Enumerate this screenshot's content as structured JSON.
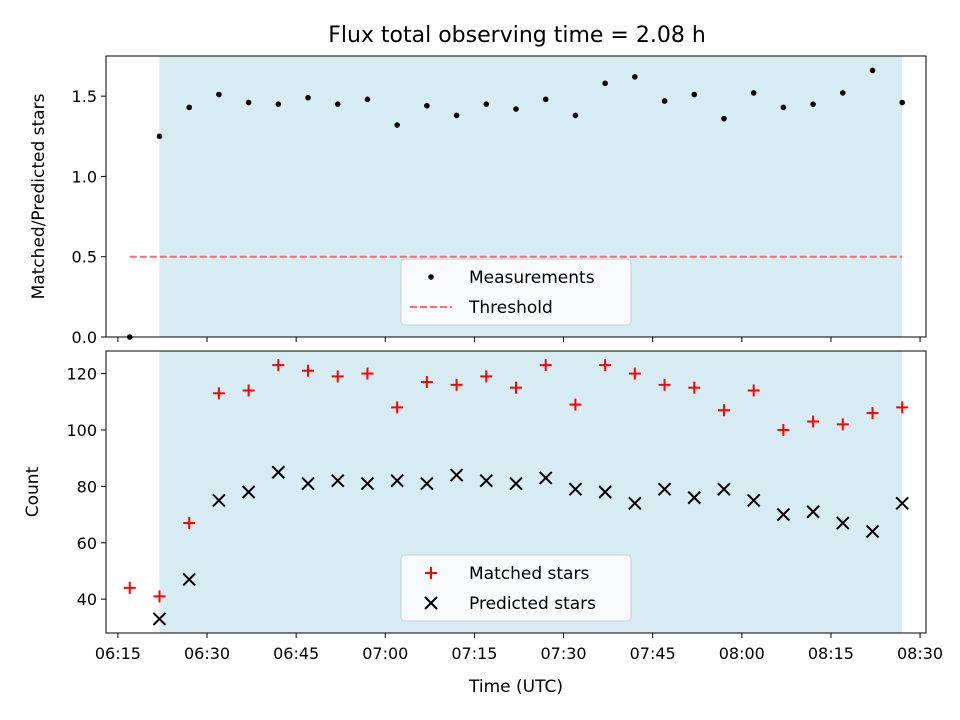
{
  "title": "Flux total observing time = 2.08 h",
  "colors": {
    "shade": "#add8e6",
    "measurement": "#000000",
    "threshold": "#ff6b6b",
    "matched": "#ff0000",
    "predicted": "#000000"
  },
  "chart_data": [
    {
      "type": "scatter",
      "panel": "top",
      "ylabel": "Matched/Predicted stars",
      "ylim": [
        0,
        1.75
      ],
      "yticks": [
        0.0,
        0.5,
        1.0,
        1.5
      ],
      "ytick_labels": [
        "0.0",
        "0.5",
        "1.0",
        "1.5"
      ],
      "x": [
        "06:17",
        "06:22",
        "06:27",
        "06:32",
        "06:37",
        "06:42",
        "06:47",
        "06:52",
        "06:57",
        "07:02",
        "07:07",
        "07:12",
        "07:17",
        "07:22",
        "07:27",
        "07:32",
        "07:37",
        "07:42",
        "07:47",
        "07:52",
        "07:57",
        "08:02",
        "08:07",
        "08:12",
        "08:17",
        "08:22",
        "08:27"
      ],
      "series": [
        {
          "name": "Measurements",
          "marker": "dot",
          "values": [
            0.0,
            1.25,
            1.43,
            1.51,
            1.46,
            1.45,
            1.49,
            1.45,
            1.48,
            1.32,
            1.44,
            1.38,
            1.45,
            1.42,
            1.48,
            1.38,
            1.58,
            1.62,
            1.47,
            1.51,
            1.36,
            1.52,
            1.43,
            1.45,
            1.52,
            1.66,
            1.46
          ]
        },
        {
          "name": "Threshold",
          "type": "line",
          "style": "dashed",
          "x": [
            "06:17",
            "08:27"
          ],
          "values": [
            0.5,
            0.5
          ]
        }
      ],
      "shaded_span": [
        "06:22",
        "08:27"
      ],
      "legend": {
        "position": "lower center"
      }
    },
    {
      "type": "scatter",
      "panel": "bottom",
      "xlabel": "Time (UTC)",
      "ylabel": "Count",
      "ylim": [
        28,
        128
      ],
      "yticks": [
        40,
        60,
        80,
        100,
        120
      ],
      "ytick_labels": [
        "40",
        "60",
        "80",
        "100",
        "120"
      ],
      "xlim": [
        "06:13",
        "08:31"
      ],
      "xticks": [
        "06:15",
        "06:30",
        "06:45",
        "07:00",
        "07:15",
        "07:30",
        "07:45",
        "08:00",
        "08:15",
        "08:30"
      ],
      "x": [
        "06:17",
        "06:22",
        "06:27",
        "06:32",
        "06:37",
        "06:42",
        "06:47",
        "06:52",
        "06:57",
        "07:02",
        "07:07",
        "07:12",
        "07:17",
        "07:22",
        "07:27",
        "07:32",
        "07:37",
        "07:42",
        "07:47",
        "07:52",
        "07:57",
        "08:02",
        "08:07",
        "08:12",
        "08:17",
        "08:22",
        "08:27"
      ],
      "series": [
        {
          "name": "Matched stars",
          "marker": "plus",
          "values": [
            44,
            41,
            67,
            113,
            114,
            123,
            121,
            119,
            120,
            108,
            117,
            116,
            119,
            115,
            123,
            109,
            123,
            120,
            116,
            115,
            107,
            114,
            100,
            103,
            102,
            106,
            108
          ]
        },
        {
          "name": "Predicted stars",
          "marker": "x",
          "x": [
            "06:22",
            "06:27",
            "06:32",
            "06:37",
            "06:42",
            "06:47",
            "06:52",
            "06:57",
            "07:02",
            "07:07",
            "07:12",
            "07:17",
            "07:22",
            "07:27",
            "07:32",
            "07:37",
            "07:42",
            "07:47",
            "07:52",
            "07:57",
            "08:02",
            "08:07",
            "08:12",
            "08:17",
            "08:22",
            "08:27"
          ],
          "values": [
            33,
            47,
            75,
            78,
            85,
            81,
            82,
            81,
            82,
            81,
            84,
            82,
            81,
            83,
            79,
            78,
            74,
            79,
            76,
            79,
            75,
            70,
            71,
            67,
            64,
            74
          ]
        }
      ],
      "shaded_span": [
        "06:22",
        "08:27"
      ],
      "legend": {
        "position": "lower center"
      }
    }
  ]
}
